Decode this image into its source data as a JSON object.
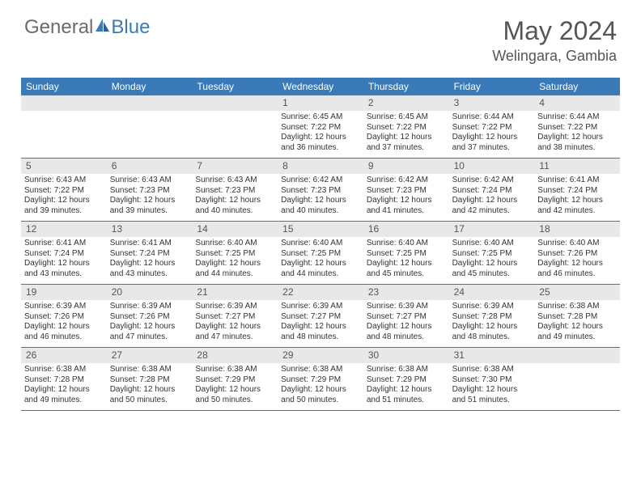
{
  "logo": {
    "general": "General",
    "blue": "Blue"
  },
  "title": "May 2024",
  "location": "Welingara, Gambia",
  "colors": {
    "header_bg": "#3a7ab8",
    "header_text": "#ffffff",
    "daynum_bg": "#e8e8e8",
    "border": "#3a7ab8",
    "text": "#333333",
    "title_text": "#555555"
  },
  "day_names": [
    "Sunday",
    "Monday",
    "Tuesday",
    "Wednesday",
    "Thursday",
    "Friday",
    "Saturday"
  ],
  "weeks": [
    [
      null,
      null,
      null,
      {
        "n": "1",
        "sunrise": "6:45 AM",
        "sunset": "7:22 PM",
        "daylight": "12 hours and 36 minutes."
      },
      {
        "n": "2",
        "sunrise": "6:45 AM",
        "sunset": "7:22 PM",
        "daylight": "12 hours and 37 minutes."
      },
      {
        "n": "3",
        "sunrise": "6:44 AM",
        "sunset": "7:22 PM",
        "daylight": "12 hours and 37 minutes."
      },
      {
        "n": "4",
        "sunrise": "6:44 AM",
        "sunset": "7:22 PM",
        "daylight": "12 hours and 38 minutes."
      }
    ],
    [
      {
        "n": "5",
        "sunrise": "6:43 AM",
        "sunset": "7:22 PM",
        "daylight": "12 hours and 39 minutes."
      },
      {
        "n": "6",
        "sunrise": "6:43 AM",
        "sunset": "7:23 PM",
        "daylight": "12 hours and 39 minutes."
      },
      {
        "n": "7",
        "sunrise": "6:43 AM",
        "sunset": "7:23 PM",
        "daylight": "12 hours and 40 minutes."
      },
      {
        "n": "8",
        "sunrise": "6:42 AM",
        "sunset": "7:23 PM",
        "daylight": "12 hours and 40 minutes."
      },
      {
        "n": "9",
        "sunrise": "6:42 AM",
        "sunset": "7:23 PM",
        "daylight": "12 hours and 41 minutes."
      },
      {
        "n": "10",
        "sunrise": "6:42 AM",
        "sunset": "7:24 PM",
        "daylight": "12 hours and 42 minutes."
      },
      {
        "n": "11",
        "sunrise": "6:41 AM",
        "sunset": "7:24 PM",
        "daylight": "12 hours and 42 minutes."
      }
    ],
    [
      {
        "n": "12",
        "sunrise": "6:41 AM",
        "sunset": "7:24 PM",
        "daylight": "12 hours and 43 minutes."
      },
      {
        "n": "13",
        "sunrise": "6:41 AM",
        "sunset": "7:24 PM",
        "daylight": "12 hours and 43 minutes."
      },
      {
        "n": "14",
        "sunrise": "6:40 AM",
        "sunset": "7:25 PM",
        "daylight": "12 hours and 44 minutes."
      },
      {
        "n": "15",
        "sunrise": "6:40 AM",
        "sunset": "7:25 PM",
        "daylight": "12 hours and 44 minutes."
      },
      {
        "n": "16",
        "sunrise": "6:40 AM",
        "sunset": "7:25 PM",
        "daylight": "12 hours and 45 minutes."
      },
      {
        "n": "17",
        "sunrise": "6:40 AM",
        "sunset": "7:25 PM",
        "daylight": "12 hours and 45 minutes."
      },
      {
        "n": "18",
        "sunrise": "6:40 AM",
        "sunset": "7:26 PM",
        "daylight": "12 hours and 46 minutes."
      }
    ],
    [
      {
        "n": "19",
        "sunrise": "6:39 AM",
        "sunset": "7:26 PM",
        "daylight": "12 hours and 46 minutes."
      },
      {
        "n": "20",
        "sunrise": "6:39 AM",
        "sunset": "7:26 PM",
        "daylight": "12 hours and 47 minutes."
      },
      {
        "n": "21",
        "sunrise": "6:39 AM",
        "sunset": "7:27 PM",
        "daylight": "12 hours and 47 minutes."
      },
      {
        "n": "22",
        "sunrise": "6:39 AM",
        "sunset": "7:27 PM",
        "daylight": "12 hours and 48 minutes."
      },
      {
        "n": "23",
        "sunrise": "6:39 AM",
        "sunset": "7:27 PM",
        "daylight": "12 hours and 48 minutes."
      },
      {
        "n": "24",
        "sunrise": "6:39 AM",
        "sunset": "7:28 PM",
        "daylight": "12 hours and 48 minutes."
      },
      {
        "n": "25",
        "sunrise": "6:38 AM",
        "sunset": "7:28 PM",
        "daylight": "12 hours and 49 minutes."
      }
    ],
    [
      {
        "n": "26",
        "sunrise": "6:38 AM",
        "sunset": "7:28 PM",
        "daylight": "12 hours and 49 minutes."
      },
      {
        "n": "27",
        "sunrise": "6:38 AM",
        "sunset": "7:28 PM",
        "daylight": "12 hours and 50 minutes."
      },
      {
        "n": "28",
        "sunrise": "6:38 AM",
        "sunset": "7:29 PM",
        "daylight": "12 hours and 50 minutes."
      },
      {
        "n": "29",
        "sunrise": "6:38 AM",
        "sunset": "7:29 PM",
        "daylight": "12 hours and 50 minutes."
      },
      {
        "n": "30",
        "sunrise": "6:38 AM",
        "sunset": "7:29 PM",
        "daylight": "12 hours and 51 minutes."
      },
      {
        "n": "31",
        "sunrise": "6:38 AM",
        "sunset": "7:30 PM",
        "daylight": "12 hours and 51 minutes."
      },
      null
    ]
  ],
  "labels": {
    "sunrise": "Sunrise: ",
    "sunset": "Sunset: ",
    "daylight": "Daylight: "
  }
}
